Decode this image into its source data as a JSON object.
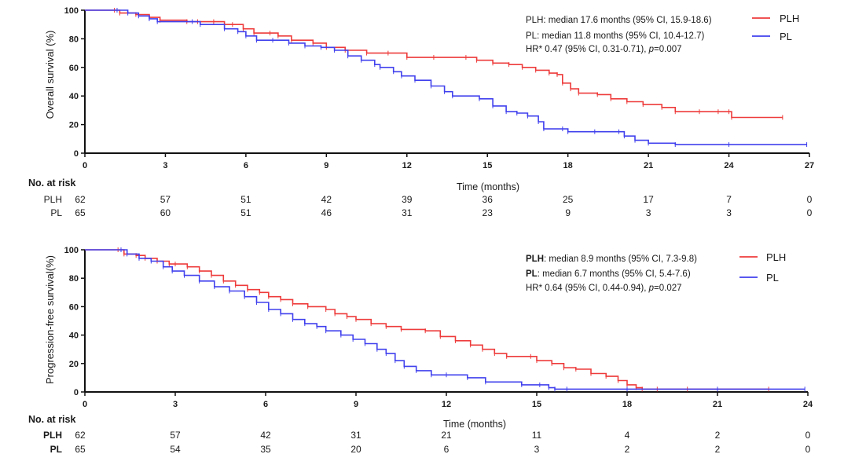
{
  "chart_data": [
    {
      "type": "line",
      "subtype": "kaplan-meier",
      "title": "",
      "xlabel": "Time (months)",
      "ylabel": "Overall survival (%)",
      "xlim": [
        0,
        27
      ],
      "ylim": [
        0,
        100
      ],
      "x_ticks": [
        "0",
        "3",
        "6",
        "9",
        "12",
        "15",
        "18",
        "21",
        "24",
        "27"
      ],
      "y_ticks": [
        "0",
        "20",
        "40",
        "60",
        "80",
        "100"
      ],
      "grid": false,
      "legend_position": "top-right",
      "annotations": [
        [
          {
            "text": "PLH",
            "bold": false
          },
          {
            "text": ": median 17.6 months (95% CI, 15.9-18.6)",
            "bold": false
          }
        ],
        [
          {
            "text": "PL",
            "bold": false
          },
          {
            "text": ": median 11.8 months (95% CI, 10.4-12.7)",
            "bold": false
          }
        ],
        [
          {
            "text": "HR* 0.47 (95% CI, 0.31-0.71), ",
            "bold": false,
            "italic": false
          },
          {
            "text": "p",
            "italic": true
          },
          {
            "text": "=0.007",
            "italic": false
          }
        ]
      ],
      "series": [
        {
          "name": "PLH",
          "color": "#ee3b3b",
          "points": [
            [
              0,
              100
            ],
            [
              1.1,
              100
            ],
            [
              1.3,
              98
            ],
            [
              1.9,
              97
            ],
            [
              2.4,
              95
            ],
            [
              2.8,
              93
            ],
            [
              3.8,
              92
            ],
            [
              4.2,
              92
            ],
            [
              4.8,
              92
            ],
            [
              5.2,
              90
            ],
            [
              5.5,
              90
            ],
            [
              5.9,
              87
            ],
            [
              6.3,
              84
            ],
            [
              6.9,
              84
            ],
            [
              7.2,
              82
            ],
            [
              7.7,
              79
            ],
            [
              8.5,
              77
            ],
            [
              9.0,
              74
            ],
            [
              9.7,
              72
            ],
            [
              10.5,
              70
            ],
            [
              11.3,
              70
            ],
            [
              12.0,
              67
            ],
            [
              13.0,
              67
            ],
            [
              14.2,
              67
            ],
            [
              14.6,
              65
            ],
            [
              15.2,
              63
            ],
            [
              15.8,
              62
            ],
            [
              16.3,
              60
            ],
            [
              16.8,
              58
            ],
            [
              17.3,
              56
            ],
            [
              17.6,
              55
            ],
            [
              17.8,
              49
            ],
            [
              18.1,
              45
            ],
            [
              18.4,
              42
            ],
            [
              19.1,
              41
            ],
            [
              19.6,
              38
            ],
            [
              20.2,
              36
            ],
            [
              20.8,
              34
            ],
            [
              21.5,
              32
            ],
            [
              22.0,
              29
            ],
            [
              22.9,
              29
            ],
            [
              23.6,
              29
            ],
            [
              24.0,
              29
            ],
            [
              24.1,
              25
            ],
            [
              26.0,
              25
            ]
          ]
        },
        {
          "name": "PL",
          "color": "#4040ee",
          "points": [
            [
              0,
              100
            ],
            [
              1.2,
              100
            ],
            [
              1.6,
              98
            ],
            [
              2.0,
              96
            ],
            [
              2.4,
              94
            ],
            [
              2.7,
              92
            ],
            [
              4.0,
              92
            ],
            [
              4.3,
              90
            ],
            [
              5.2,
              87
            ],
            [
              5.7,
              85
            ],
            [
              6.0,
              82
            ],
            [
              6.4,
              79
            ],
            [
              7.0,
              79
            ],
            [
              7.6,
              77
            ],
            [
              8.2,
              75
            ],
            [
              8.8,
              74
            ],
            [
              9.3,
              72
            ],
            [
              9.8,
              68
            ],
            [
              10.3,
              65
            ],
            [
              10.8,
              62
            ],
            [
              11.0,
              60
            ],
            [
              11.5,
              57
            ],
            [
              11.8,
              54
            ],
            [
              12.3,
              51
            ],
            [
              12.9,
              47
            ],
            [
              13.4,
              43
            ],
            [
              13.7,
              40
            ],
            [
              14.7,
              38
            ],
            [
              15.2,
              33
            ],
            [
              15.7,
              29
            ],
            [
              16.1,
              28
            ],
            [
              16.5,
              26
            ],
            [
              16.9,
              22
            ],
            [
              17.1,
              17
            ],
            [
              17.8,
              17
            ],
            [
              18.0,
              15
            ],
            [
              19.0,
              15
            ],
            [
              19.9,
              15
            ],
            [
              20.1,
              12
            ],
            [
              20.5,
              9
            ],
            [
              21.0,
              7
            ],
            [
              22.0,
              6
            ],
            [
              24.0,
              6
            ],
            [
              26.9,
              6
            ]
          ]
        }
      ],
      "risk_table": {
        "header": "No. at risk",
        "time_points": [
          "0",
          "3",
          "6",
          "9",
          "12",
          "15",
          "18",
          "21",
          "24",
          "27"
        ],
        "rows": [
          {
            "label": "PLH",
            "bold": false,
            "values": [
              "62",
              "57",
              "51",
              "42",
              "39",
              "36",
              "25",
              "17",
              "7",
              "0"
            ]
          },
          {
            "label": "PL",
            "bold": false,
            "values": [
              "65",
              "60",
              "51",
              "46",
              "31",
              "23",
              "9",
              "3",
              "3",
              "0"
            ]
          }
        ]
      }
    },
    {
      "type": "line",
      "subtype": "kaplan-meier",
      "title": "",
      "xlabel": "Time (months)",
      "ylabel": "Progression-free survival(%)",
      "xlim": [
        0,
        24
      ],
      "ylim": [
        0,
        100
      ],
      "x_ticks": [
        "0",
        "3",
        "6",
        "9",
        "12",
        "15",
        "18",
        "21",
        "24"
      ],
      "y_ticks": [
        "0",
        "20",
        "40",
        "60",
        "80",
        "100"
      ],
      "grid": false,
      "legend_position": "top-right",
      "annotations": [
        [
          {
            "text": "PLH",
            "bold": true
          },
          {
            "text": ": median 8.9 months (95% CI, 7.3-9.8)",
            "bold": false
          }
        ],
        [
          {
            "text": "PL",
            "bold": true
          },
          {
            "text": ": median 6.7 months (95% CI, 5.4-7.6)",
            "bold": false
          }
        ],
        [
          {
            "text": "HR* 0.64 (95% CI, 0.44-0.94), ",
            "bold": false,
            "italic": false
          },
          {
            "text": "p",
            "italic": true
          },
          {
            "text": "=0.027",
            "italic": false
          }
        ]
      ],
      "series": [
        {
          "name": "PLH",
          "color": "#ee3b3b",
          "points": [
            [
              0,
              100
            ],
            [
              1.1,
              100
            ],
            [
              1.3,
              97
            ],
            [
              1.7,
              96
            ],
            [
              2.0,
              94
            ],
            [
              2.4,
              92
            ],
            [
              2.8,
              90
            ],
            [
              3.0,
              90
            ],
            [
              3.4,
              88
            ],
            [
              3.8,
              85
            ],
            [
              4.2,
              82
            ],
            [
              4.6,
              78
            ],
            [
              5.0,
              75
            ],
            [
              5.4,
              72
            ],
            [
              5.8,
              70
            ],
            [
              6.1,
              67
            ],
            [
              6.5,
              65
            ],
            [
              6.9,
              62
            ],
            [
              7.4,
              60
            ],
            [
              8.0,
              58
            ],
            [
              8.3,
              55
            ],
            [
              8.7,
              53
            ],
            [
              9.0,
              51
            ],
            [
              9.5,
              48
            ],
            [
              10.0,
              46
            ],
            [
              10.5,
              44
            ],
            [
              11.3,
              43
            ],
            [
              11.8,
              39
            ],
            [
              12.3,
              36
            ],
            [
              12.8,
              33
            ],
            [
              13.2,
              30
            ],
            [
              13.6,
              27
            ],
            [
              14.0,
              25
            ],
            [
              14.8,
              25
            ],
            [
              15.0,
              22
            ],
            [
              15.5,
              20
            ],
            [
              15.9,
              17
            ],
            [
              16.3,
              16
            ],
            [
              16.8,
              13
            ],
            [
              17.3,
              11
            ],
            [
              17.7,
              8
            ],
            [
              18.0,
              5
            ],
            [
              18.3,
              3
            ],
            [
              18.5,
              2
            ],
            [
              19.0,
              2
            ],
            [
              20.0,
              2
            ],
            [
              22.7,
              2
            ]
          ]
        },
        {
          "name": "PL",
          "color": "#4040ee",
          "points": [
            [
              0,
              100
            ],
            [
              1.2,
              100
            ],
            [
              1.4,
              97
            ],
            [
              1.8,
              94
            ],
            [
              2.2,
              92
            ],
            [
              2.6,
              88
            ],
            [
              2.9,
              85
            ],
            [
              3.3,
              82
            ],
            [
              3.8,
              78
            ],
            [
              4.3,
              74
            ],
            [
              4.8,
              71
            ],
            [
              5.3,
              67
            ],
            [
              5.7,
              63
            ],
            [
              6.1,
              58
            ],
            [
              6.5,
              55
            ],
            [
              6.9,
              51
            ],
            [
              7.3,
              48
            ],
            [
              7.7,
              46
            ],
            [
              8.0,
              43
            ],
            [
              8.5,
              40
            ],
            [
              8.9,
              37
            ],
            [
              9.3,
              34
            ],
            [
              9.7,
              30
            ],
            [
              10.0,
              27
            ],
            [
              10.3,
              22
            ],
            [
              10.6,
              18
            ],
            [
              11.0,
              15
            ],
            [
              11.5,
              12
            ],
            [
              12.0,
              12
            ],
            [
              12.7,
              10
            ],
            [
              13.3,
              7
            ],
            [
              14.5,
              5
            ],
            [
              15.1,
              5
            ],
            [
              15.4,
              3
            ],
            [
              15.6,
              2
            ],
            [
              16.0,
              2
            ],
            [
              18.0,
              2
            ],
            [
              21.0,
              2
            ],
            [
              23.9,
              2
            ]
          ]
        }
      ],
      "risk_table": {
        "header": "No. at risk",
        "time_points": [
          "0",
          "3",
          "6",
          "9",
          "12",
          "15",
          "18",
          "21",
          "24"
        ],
        "rows": [
          {
            "label": "PLH",
            "bold": true,
            "values": [
              "62",
              "57",
              "42",
              "31",
              "21",
              "11",
              "4",
              "2",
              "0"
            ]
          },
          {
            "label": "PL",
            "bold": true,
            "values": [
              "65",
              "54",
              "35",
              "20",
              "6",
              "3",
              "2",
              "2",
              "0"
            ]
          }
        ]
      }
    }
  ]
}
